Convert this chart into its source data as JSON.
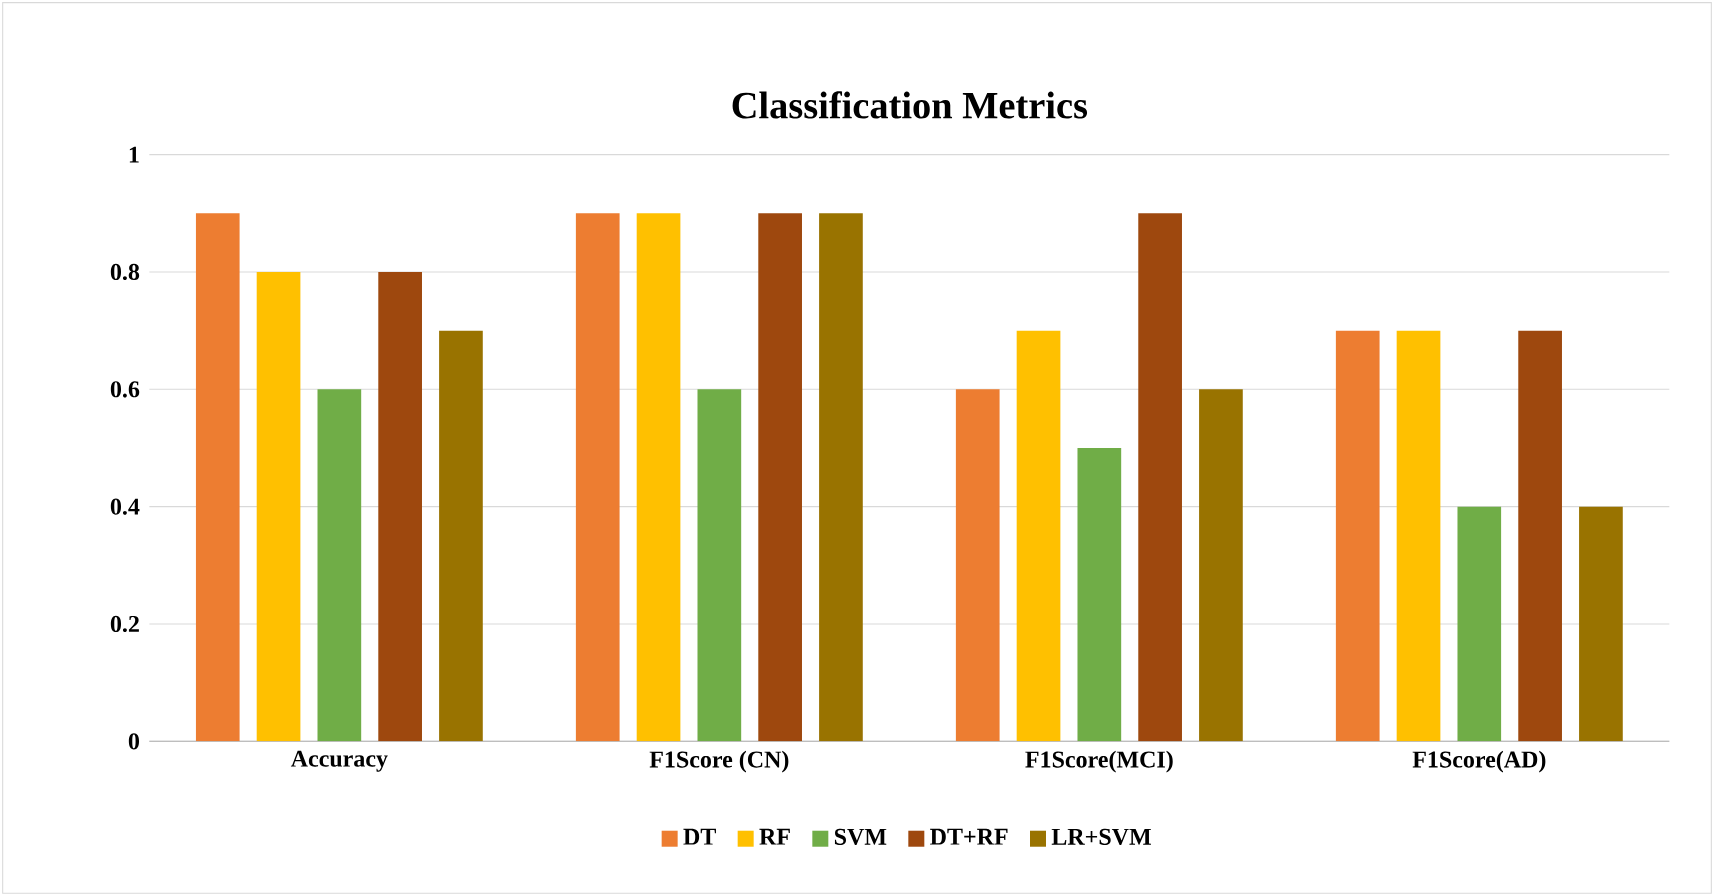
{
  "chart_data": {
    "type": "bar",
    "title": "Classification Metrics",
    "categories": [
      "Accuracy",
      "F1Score (CN)",
      "F1Score(MCI)",
      "F1Score(AD)"
    ],
    "series": [
      {
        "name": "DT",
        "color": "#ed7d31",
        "values": [
          0.9,
          0.9,
          0.6,
          0.7
        ]
      },
      {
        "name": "RF",
        "color": "#ffc000",
        "values": [
          0.8,
          0.9,
          0.7,
          0.7
        ]
      },
      {
        "name": "SVM",
        "color": "#70ad47",
        "values": [
          0.6,
          0.6,
          0.5,
          0.4
        ]
      },
      {
        "name": "DT+RF",
        "color": "#9e480e",
        "values": [
          0.8,
          0.9,
          0.9,
          0.7
        ]
      },
      {
        "name": "LR+SVM",
        "color": "#997300",
        "values": [
          0.7,
          0.9,
          0.6,
          0.4
        ]
      }
    ],
    "ylim": [
      0,
      1
    ],
    "yticks": [
      0,
      0.2,
      0.4,
      0.6,
      0.8,
      1
    ],
    "grid": "y",
    "legend": "bottom"
  }
}
